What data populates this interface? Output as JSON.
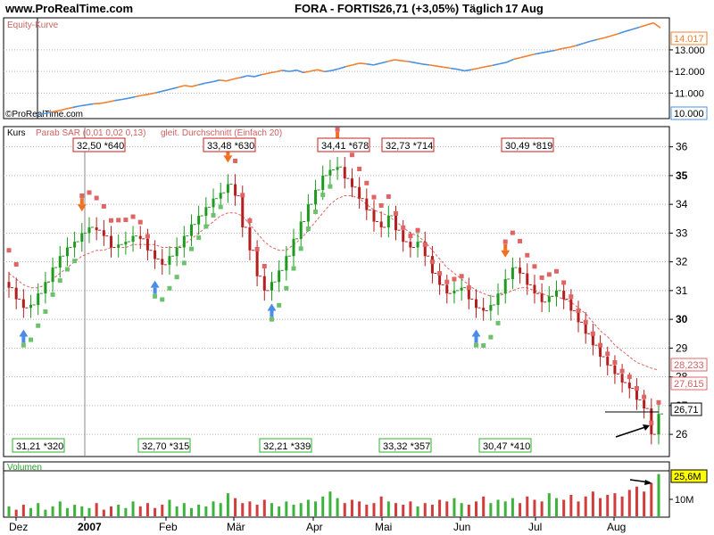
{
  "header": {
    "site": "www.ProRealTime.com",
    "instrument": "FORA - FORTIS",
    "price_change": "26,71 (+3,05%)",
    "period": "Täglich",
    "date": "17 Aug"
  },
  "colors": {
    "frame": "#000000",
    "grid": "#b4b4b4",
    "panel_title": "#d06060",
    "sar_up": "#6cc26c",
    "sar_down": "#e06464",
    "ma": "#e06464",
    "candle_up": "#1e9a1e",
    "candle_down": "#b41e1e",
    "box_red": "#c81e1e",
    "box_green": "#28b428",
    "equity_blue": "#4a90e2",
    "equity_orange": "#f08030",
    "arrow_blue": "#4a8ce8",
    "arrow_orange": "#f07020"
  },
  "chart_data": [
    {
      "panel": "equity",
      "type": "line",
      "title": "Equity-Kurve",
      "watermark": "©ProRealTime.com",
      "ylim": [
        9900,
        14400
      ],
      "yticks": [
        "11.000",
        "12.000",
        "13.000"
      ],
      "last_label": "14.017",
      "bottom_label": "10.000",
      "values": [
        10000,
        10050,
        10120,
        10180,
        10260,
        10330,
        10400,
        10450,
        10500,
        10520,
        10580,
        10650,
        10700,
        10760,
        10830,
        10900,
        10950,
        11020,
        11100,
        11180,
        11260,
        11350,
        11300,
        11380,
        11460,
        11520,
        11600,
        11560,
        11650,
        11720,
        11800,
        11760,
        11850,
        11920,
        11980,
        12050,
        12000,
        12060,
        11950,
        12010,
        12080,
        11990,
        12040,
        12120,
        12220,
        12300,
        12380,
        12350,
        12300,
        12380,
        12460,
        12540,
        12500,
        12460,
        12400,
        12340,
        12300,
        12250,
        12200,
        12150,
        12100,
        12030,
        12080,
        12150,
        12220,
        12280,
        12350,
        12420,
        12560,
        12640,
        12720,
        12800,
        12860,
        12920,
        12980,
        13060,
        13120,
        13200,
        13300,
        13400,
        13480,
        13560,
        13650,
        13750,
        13860,
        13950,
        14050,
        14150,
        14250,
        14017
      ]
    },
    {
      "panel": "price",
      "type": "candlestick",
      "title": "Kurs",
      "legend": [
        "Parab SAR (0,01 0,02 0,13)",
        "gleit. Durchschnitt (Einfach 20)"
      ],
      "ylim": [
        25.6,
        36.3
      ],
      "yticks": [
        "26",
        "27",
        "28",
        "29",
        "30",
        "31",
        "32",
        "33",
        "34",
        "35",
        "36"
      ],
      "bold_ticks": [
        "30",
        "35"
      ],
      "xticks": [
        "Dez",
        "2007",
        "Feb",
        "Mär",
        "Apr",
        "Mai",
        "Jun",
        "Jul",
        "Aug"
      ],
      "last_price_label": "26,71",
      "ma_label": "28,233",
      "sar_label": "27,615",
      "swing_highs": [
        "32,50 *640",
        "33,48 *630",
        "34,41 *678",
        "32,73 *714",
        "30,49 *819"
      ],
      "swing_lows": [
        "31,21 *320",
        "32,70 *315",
        "32,21 *339",
        "33,32 *357",
        "30,47 *410"
      ],
      "closes": [
        31.1,
        30.7,
        30.4,
        30.5,
        30.9,
        31.3,
        31.8,
        32.2,
        32.5,
        32.7,
        33.0,
        33.2,
        33.1,
        32.9,
        32.5,
        32.6,
        32.7,
        32.9,
        32.8,
        32.4,
        32.1,
        31.9,
        32.2,
        32.5,
        32.9,
        33.3,
        33.6,
        33.9,
        34.2,
        34.4,
        34.7,
        34.3,
        33.2,
        32.4,
        31.5,
        31.0,
        31.3,
        31.7,
        32.2,
        32.8,
        33.4,
        34.0,
        34.5,
        35.0,
        35.2,
        35.3,
        34.9,
        34.6,
        34.2,
        33.8,
        33.4,
        33.2,
        33.6,
        33.1,
        32.7,
        32.5,
        32.7,
        32.2,
        31.6,
        31.2,
        30.9,
        31.0,
        31.1,
        30.7,
        30.4,
        30.3,
        30.5,
        30.9,
        31.4,
        31.8,
        31.6,
        31.2,
        30.9,
        30.6,
        30.8,
        31.0,
        30.7,
        30.3,
        29.9,
        29.5,
        29.1,
        28.7,
        28.4,
        28.1,
        27.8,
        27.6,
        27.2,
        26.9,
        26.0,
        26.71
      ],
      "moving_average": [
        31.6,
        31.4,
        31.2,
        31.1,
        31.1,
        31.2,
        31.4,
        31.6,
        31.8,
        32.0,
        32.2,
        32.3,
        32.4,
        32.4,
        32.5,
        32.5,
        32.5,
        32.6,
        32.6,
        32.6,
        32.6,
        32.5,
        32.5,
        32.5,
        32.6,
        32.8,
        33.0,
        33.2,
        33.4,
        33.6,
        33.7,
        33.7,
        33.6,
        33.3,
        33.0,
        32.7,
        32.5,
        32.4,
        32.4,
        32.6,
        32.8,
        33.1,
        33.4,
        33.7,
        34.0,
        34.2,
        34.3,
        34.3,
        34.2,
        34.0,
        33.8,
        33.7,
        33.6,
        33.4,
        33.2,
        33.0,
        32.9,
        32.7,
        32.4,
        32.1,
        31.8,
        31.6,
        31.4,
        31.2,
        31.0,
        30.9,
        30.8,
        30.8,
        30.9,
        31.0,
        31.1,
        31.1,
        31.0,
        30.9,
        30.8,
        30.8,
        30.7,
        30.6,
        30.4,
        30.2,
        29.9,
        29.6,
        29.4,
        29.1,
        28.9,
        28.7,
        28.5,
        28.4,
        28.3,
        28.233
      ],
      "sar_direction": [
        "down",
        "down",
        "up",
        "up",
        "up",
        "up",
        "up",
        "up",
        "up",
        "up",
        "down",
        "down",
        "down",
        "down",
        "down",
        "down",
        "down",
        "down",
        "down",
        "down",
        "up",
        "up",
        "up",
        "up",
        "up",
        "up",
        "up",
        "up",
        "up",
        "up",
        "down",
        "down",
        "down",
        "down",
        "down",
        "down",
        "up",
        "up",
        "up",
        "up",
        "up",
        "up",
        "up",
        "up",
        "up",
        "down",
        "down",
        "down",
        "down",
        "down",
        "down",
        "down",
        "down",
        "down",
        "down",
        "down",
        "down",
        "down",
        "down",
        "down",
        "down",
        "down",
        "down",
        "down",
        "up",
        "up",
        "up",
        "up",
        "down",
        "down",
        "down",
        "down",
        "down",
        "down",
        "down",
        "down",
        "down",
        "down",
        "down",
        "down",
        "down",
        "down",
        "down",
        "down",
        "down",
        "down",
        "down",
        "down",
        "down",
        "down"
      ]
    },
    {
      "panel": "volume",
      "type": "bar",
      "title": "Volumen",
      "ylim": [
        0,
        26.5
      ],
      "ytick_label": "10M",
      "last_label": "25,6M",
      "values": [
        6,
        4,
        7,
        5,
        8,
        4,
        6,
        9,
        5,
        7,
        6,
        5,
        8,
        4,
        6,
        7,
        5,
        9,
        6,
        8,
        5,
        7,
        10,
        6,
        8,
        5,
        7,
        6,
        9,
        8,
        14,
        11,
        8,
        9,
        7,
        10,
        8,
        6,
        9,
        7,
        8,
        10,
        9,
        12,
        15,
        11,
        8,
        10,
        9,
        7,
        8,
        12,
        9,
        8,
        7,
        9,
        6,
        8,
        7,
        10,
        9,
        11,
        8,
        7,
        9,
        12,
        8,
        10,
        9,
        11,
        8,
        12,
        10,
        9,
        14,
        11,
        10,
        13,
        9,
        12,
        15,
        11,
        13,
        14,
        12,
        16,
        18,
        15,
        20,
        25.6
      ]
    }
  ]
}
